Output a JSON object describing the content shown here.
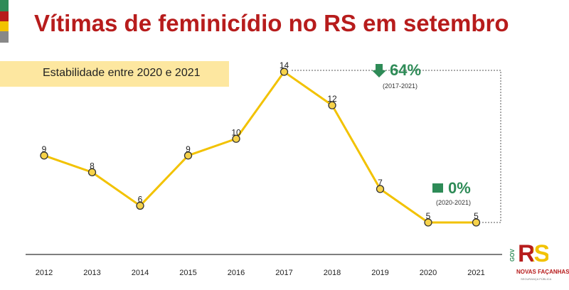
{
  "header": {
    "title": "Vítimas de feminicídio no RS em setembro",
    "subtitle": "Estabilidade entre 2020 e 2021"
  },
  "colors": {
    "title": "#b71c1c",
    "line": "#f2c200",
    "marker_fill": "#f6d24a",
    "marker_stroke": "#333333",
    "highlight_box": "#fde7a0",
    "annotation_green": "#2e8b57",
    "flag": [
      "#2e8b57",
      "#b71c1c",
      "#f2c200",
      "#888888"
    ]
  },
  "chart_data": {
    "type": "line",
    "categories": [
      "2012",
      "2013",
      "2014",
      "2015",
      "2016",
      "2017",
      "2018",
      "2019",
      "2020",
      "2021"
    ],
    "values": [
      9,
      8,
      6,
      9,
      10,
      14,
      12,
      7,
      5,
      5
    ],
    "title": "Vítimas de feminicídio no RS em setembro",
    "subtitle": "Estabilidade entre 2020 e 2021",
    "xlabel": "",
    "ylabel": "",
    "ylim": [
      0,
      16
    ],
    "grid": false,
    "legend": "none",
    "data_labels": true
  },
  "annotations": {
    "long_term": {
      "icon": "arrow-down-icon",
      "value": "64%",
      "period": "(2017-2021)"
    },
    "short_term": {
      "icon": "square-icon",
      "value": "0%",
      "period": "(2020-2021)"
    }
  },
  "logo": {
    "gov": "GOV",
    "mark": "RS",
    "name": "NOVAS FAÇANHAS",
    "dept": "SEGURANÇA PÚBLICA"
  }
}
